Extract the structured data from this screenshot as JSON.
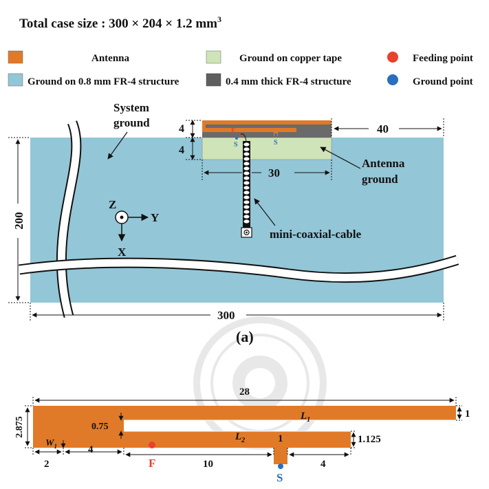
{
  "title": {
    "prefix": "Total case size : 300 × 204 × 1.2 mm",
    "superscript": "3"
  },
  "legend": [
    {
      "label": "Antenna",
      "color": "#e07a28"
    },
    {
      "label": "Ground on copper tape",
      "color": "#cfe4b8"
    },
    {
      "label": "Feeding point",
      "color": "#e8412c"
    },
    {
      "label": "Ground on 0.8 mm FR-4 structure",
      "color": "#93c6d6"
    },
    {
      "label": "0.4 mm thick FR-4 structure",
      "color": "#5f5f5f"
    },
    {
      "label": "Ground point",
      "color": "#2a6fbf"
    }
  ],
  "top_view": {
    "system_ground_line1": "System",
    "system_ground_line2": "ground",
    "antenna_ground_line1": "Antenna",
    "antenna_ground_line2": "ground",
    "cable_label": "mini-coaxial-cable",
    "axis_z": "Z",
    "axis_y": "Y",
    "axis_x": "X",
    "feed_marker": "F",
    "ground_marker_1": "S",
    "ground_marker_2": "S",
    "dim_antenna_height": "4",
    "dim_antenna_ground_height": "4",
    "dim_width_40": "40",
    "dim_width_30": "30",
    "dim_height_200": "200",
    "dim_length_300": "300",
    "caption": "(a)"
  },
  "detail_view": {
    "dim_total_length": "28",
    "dim_total_height": "2.875",
    "dim_upper_arm_height": "1",
    "dim_gap": "0.75",
    "dim_lower_arm_height": "1.125",
    "dim_stub_width": "1",
    "label_l1": "L",
    "label_l1_sub": "1",
    "label_l2": "L",
    "label_l2_sub": "2",
    "label_w": "W",
    "label_w_sub": "1",
    "dim_left_2": "2",
    "dim_left_4": "4",
    "dim_feed_10": "10",
    "dim_right_4": "4",
    "feed_label": "F",
    "ground_label": "S"
  },
  "colors": {
    "antenna": "#e07a28",
    "copper_tape": "#cfe4b8",
    "fr4_ground": "#93c6d6",
    "fr4_thin": "#5f5f5f",
    "feed": "#e8412c",
    "ground": "#2a6fbf"
  }
}
